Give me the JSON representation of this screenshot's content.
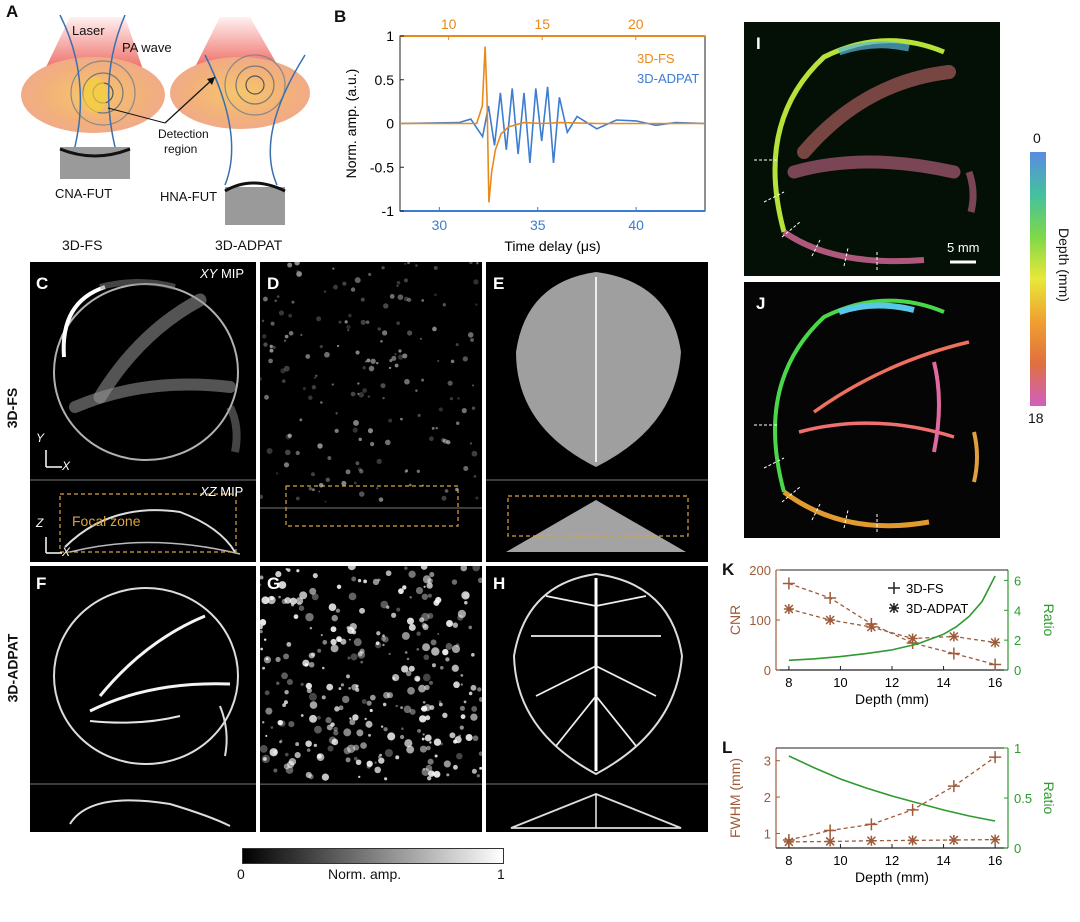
{
  "panel_letters": {
    "A": "A",
    "B": "B",
    "C": "C",
    "D": "D",
    "E": "E",
    "F": "F",
    "G": "G",
    "H": "H",
    "I": "I",
    "J": "J",
    "K": "K",
    "L": "L"
  },
  "schematic": {
    "laser": "Laser",
    "pa_wave": "PA wave",
    "detection": "Detection",
    "region": "region",
    "cna": "CNA-FUT",
    "hna": "HNA-FUT",
    "left_caption": "3D-FS",
    "right_caption": "3D-ADPAT"
  },
  "row_labels": {
    "top": "3D-FS",
    "bottom": "3D-ADPAT"
  },
  "image_annotations": {
    "xy_mip_italic": "XY",
    "xy_mip_rest": " MIP",
    "xz_mip_italic": "XZ",
    "xz_mip_rest": " MIP",
    "focal_zone": "Focal zone",
    "axis_y": "Y",
    "axis_x": "X",
    "axis_z": "Z",
    "axis_x2": "X",
    "scale_bar": "5 mm"
  },
  "grayscale_bar": {
    "min": "0",
    "label": "Norm. amp.",
    "max": "1"
  },
  "depth_bar": {
    "top": "0",
    "bottom": "18",
    "label": "Depth (mm)"
  },
  "colors": {
    "fs": "#e8891c",
    "adpat": "#3c7dd1",
    "cnr": "#9e5b3a",
    "ratio": "#2f9a2f",
    "focal": "#d9a441"
  },
  "chart_data": [
    {
      "type": "line",
      "panel": "B",
      "xlabel": "Time delay (μs)",
      "ylabel": "Norm. amp. (a.u.)",
      "ylim": [
        -1,
        1
      ],
      "yticks": [
        "-1",
        "-0.5",
        "0",
        "0.5",
        "1"
      ],
      "x_bottom_range": [
        28,
        43.5
      ],
      "x_bottom_ticks": [
        "30",
        "35",
        "40"
      ],
      "x_top_range": [
        7.4,
        23.7
      ],
      "x_top_ticks": [
        "10",
        "15",
        "20"
      ],
      "series": [
        {
          "name": "3D-FS",
          "axis": "top",
          "color": "#e8891c",
          "x": [
            7.4,
            11.5,
            11.8,
            11.95,
            12.05,
            12.15,
            12.3,
            12.5,
            12.8,
            13.2,
            14,
            15,
            16,
            18,
            20,
            22,
            23.7
          ],
          "y": [
            0,
            0,
            0.2,
            0.88,
            0.3,
            -0.9,
            -0.55,
            -0.3,
            -0.12,
            -0.04,
            0.01,
            0,
            0.01,
            0,
            0,
            0,
            0
          ]
        },
        {
          "name": "3D-ADPAT",
          "axis": "bottom",
          "color": "#3c7dd1",
          "x": [
            28,
            31,
            31.6,
            31.9,
            32.2,
            32.5,
            32.8,
            33.1,
            33.4,
            33.7,
            34,
            34.3,
            34.6,
            34.9,
            35.2,
            35.5,
            35.8,
            36.1,
            36.5,
            37,
            38,
            39,
            40,
            41,
            42,
            43.5
          ],
          "y": [
            0,
            0.01,
            0.05,
            -0.05,
            -0.15,
            0.2,
            -0.25,
            0.35,
            -0.3,
            0.4,
            -0.35,
            0.35,
            -0.45,
            0.4,
            -0.2,
            0.42,
            -0.45,
            0.3,
            -0.1,
            0.08,
            -0.06,
            0.04,
            0.03,
            -0.02,
            0.01,
            0
          ]
        }
      ],
      "legend": "top-right"
    },
    {
      "type": "line",
      "panel": "K",
      "xlabel": "Depth (mm)",
      "ylabel": "CNR",
      "y2label": "Ratio",
      "xlim": [
        7.5,
        16.5
      ],
      "xticks": [
        "8",
        "10",
        "12",
        "14",
        "16"
      ],
      "ylim": [
        0,
        200
      ],
      "yticks": [
        "0",
        "100",
        "200"
      ],
      "y2lim": [
        0,
        6.7
      ],
      "y2ticks": [
        "0",
        "2",
        "4",
        "6"
      ],
      "x": [
        8,
        9.6,
        11.2,
        12.8,
        14.4,
        16
      ],
      "series": [
        {
          "name": "3D-FS",
          "marker": "plus",
          "values": [
            173,
            144,
            92,
            54,
            33,
            11
          ]
        },
        {
          "name": "3D-ADPAT",
          "marker": "asterisk",
          "values": [
            122,
            100,
            86,
            63,
            67,
            55
          ]
        },
        {
          "name": "",
          "axis": "right",
          "color": "#2f9a2f",
          "curve_x": [
            8,
            9,
            10,
            11,
            12,
            13,
            14,
            14.5,
            15,
            15.5,
            16
          ],
          "curve_y": [
            0.65,
            0.75,
            0.9,
            1.1,
            1.35,
            1.75,
            2.4,
            2.9,
            3.6,
            4.6,
            6.3
          ]
        }
      ],
      "legend": "top-right"
    },
    {
      "type": "line",
      "panel": "L",
      "xlabel": "Depth (mm)",
      "ylabel": "FWHM (mm)",
      "y2label": "Ratio",
      "xlim": [
        7.5,
        16.5
      ],
      "xticks": [
        "8",
        "10",
        "12",
        "14",
        "16"
      ],
      "ylim": [
        0.6,
        3.35
      ],
      "yticks": [
        "1",
        "2",
        "3"
      ],
      "y2lim": [
        0,
        1
      ],
      "y2ticks": [
        "0",
        "0.5",
        "1"
      ],
      "x": [
        8,
        9.6,
        11.2,
        12.8,
        14.4,
        16
      ],
      "series": [
        {
          "name": "3D-FS",
          "marker": "plus",
          "values": [
            0.82,
            1.08,
            1.25,
            1.65,
            2.3,
            3.1
          ]
        },
        {
          "name": "3D-ADPAT",
          "marker": "asterisk",
          "values": [
            0.77,
            0.78,
            0.8,
            0.81,
            0.82,
            0.83
          ]
        },
        {
          "name": "",
          "axis": "right",
          "color": "#2f9a2f",
          "curve_x": [
            8,
            9,
            10,
            11,
            12,
            13,
            14,
            15,
            16
          ],
          "curve_y": [
            0.92,
            0.8,
            0.69,
            0.6,
            0.52,
            0.45,
            0.38,
            0.32,
            0.27
          ]
        }
      ]
    }
  ]
}
